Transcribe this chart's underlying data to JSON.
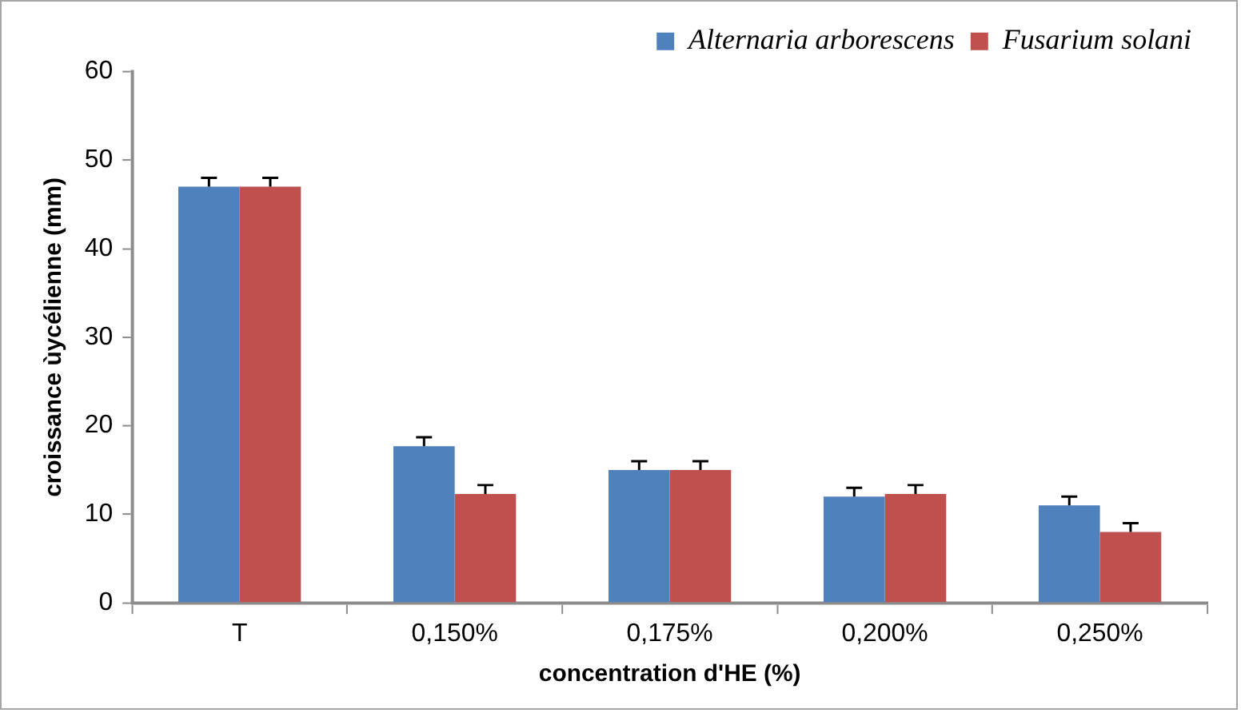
{
  "chart_data": {
    "type": "bar",
    "xlabel": "concentration d'HE (%)",
    "ylabel": "croissance ùycélienne (mm)",
    "categories": [
      "T",
      "0,150%",
      "0,175%",
      "0,200%",
      "0,250%"
    ],
    "series": [
      {
        "name": "Alternaria arborescens",
        "color": "#4f81bd",
        "values": [
          47,
          17.7,
          15,
          12,
          11
        ],
        "errors": [
          [
            47,
            48
          ],
          [
            17.7,
            18.7
          ],
          [
            15,
            16
          ],
          [
            12,
            13
          ],
          [
            11,
            12
          ]
        ]
      },
      {
        "name": "Fusarium solani",
        "color": "#c0504d",
        "values": [
          47,
          12.3,
          15,
          12.3,
          8
        ],
        "errors": [
          [
            47,
            48
          ],
          [
            12.3,
            13.3
          ],
          [
            15,
            16
          ],
          [
            12.3,
            13.3
          ],
          [
            8,
            9
          ]
        ]
      }
    ],
    "ylim": [
      0,
      60
    ],
    "yticks": [
      0,
      10,
      20,
      30,
      40,
      50,
      60
    ],
    "grid": false,
    "legend": "top right"
  }
}
